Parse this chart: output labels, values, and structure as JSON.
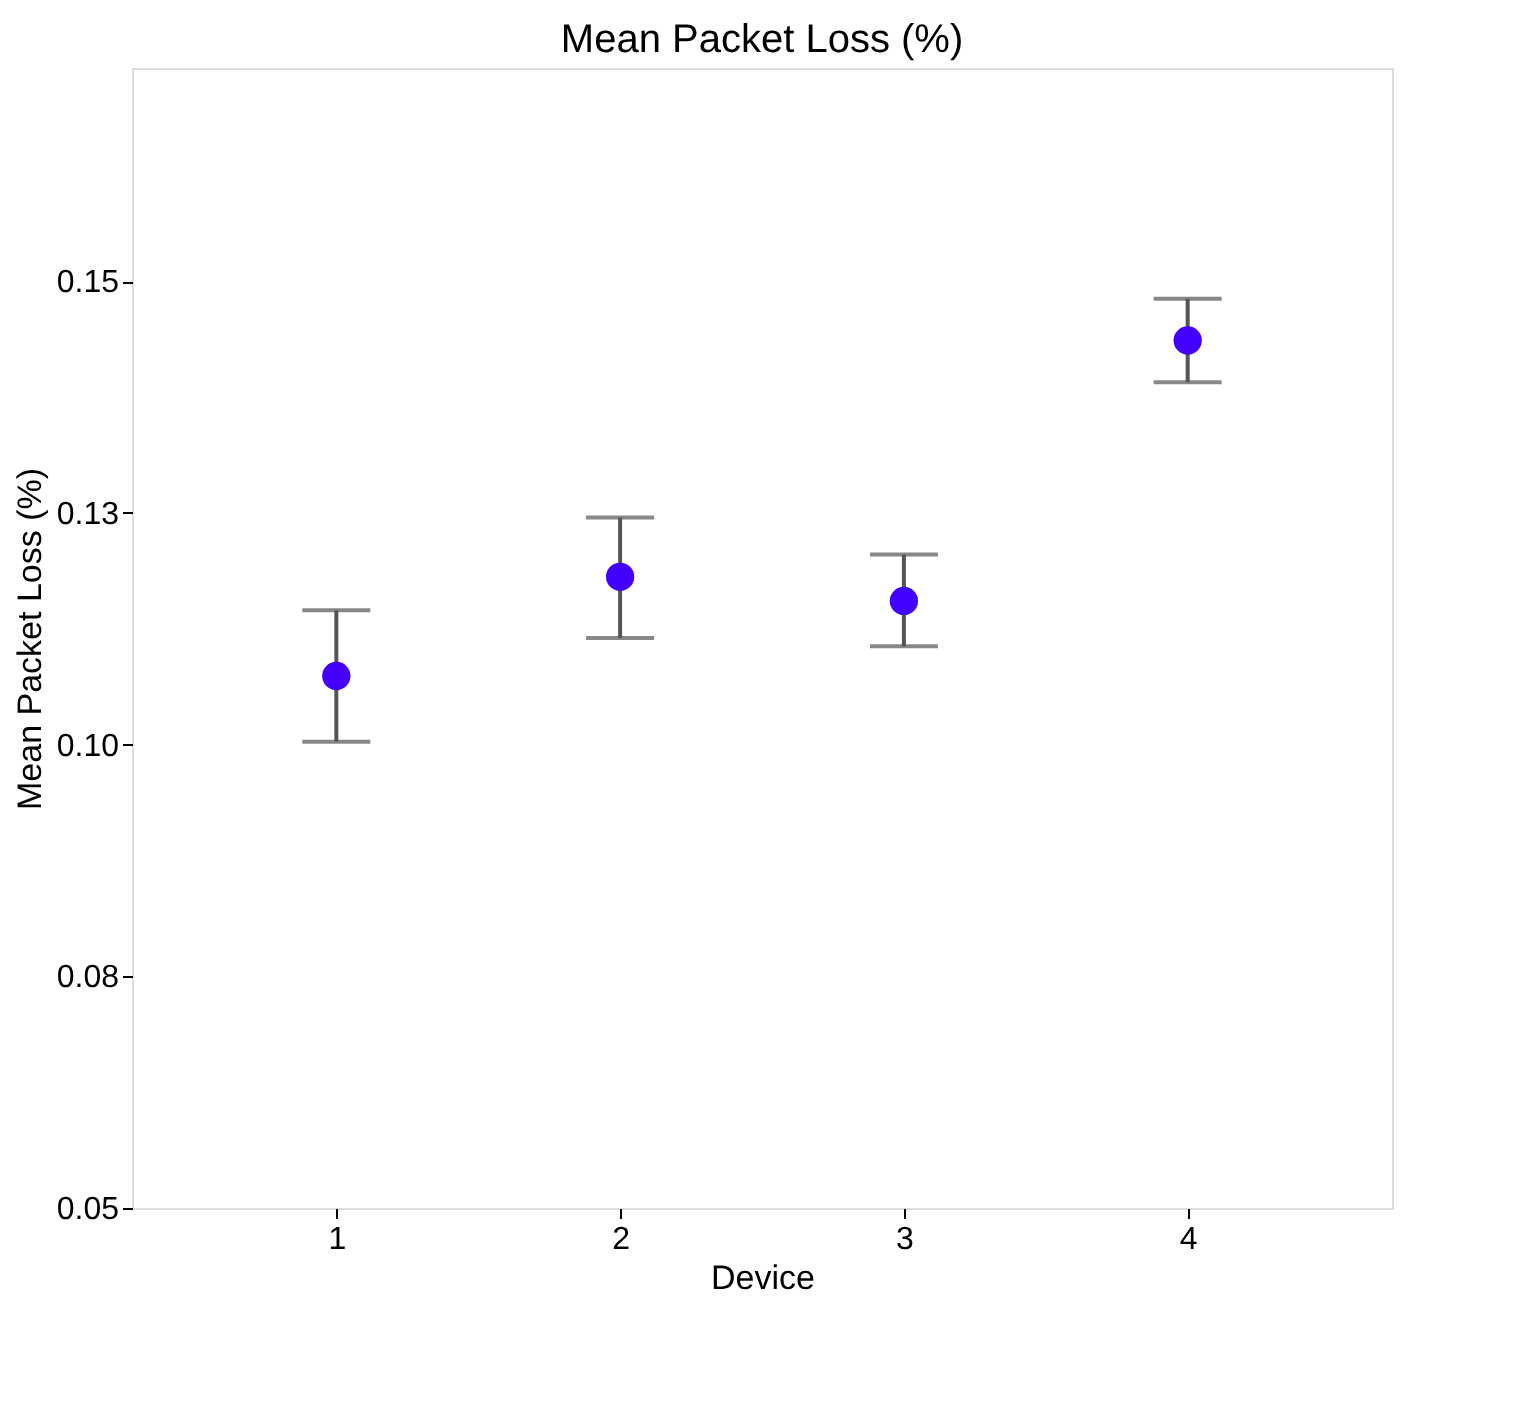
{
  "chart_data": {
    "type": "scatter",
    "title": "Mean Packet Loss (%)",
    "xlabel": "Device",
    "ylabel": "Mean Packet Loss (%)",
    "categories": [
      "1",
      "2",
      "3",
      "4"
    ],
    "values": [
      0.1074,
      0.1181,
      0.1155,
      0.1436
    ],
    "errors": [
      [
        0.1003,
        0.1145
      ],
      [
        0.1115,
        0.1245
      ],
      [
        0.1106,
        0.1205
      ],
      [
        0.1391,
        0.1481
      ]
    ],
    "color": "#4400ff",
    "marker": "circle",
    "grid": false,
    "legend": false,
    "ylim": [
      0.05,
      0.173
    ],
    "yticks": [
      0.05,
      {
        "value": 0.075,
        "label": "0.08"
      },
      {
        "value": 0.1,
        "label": "0.10"
      },
      {
        "value": 0.125,
        "label": "0.13"
      },
      0.15
    ]
  }
}
